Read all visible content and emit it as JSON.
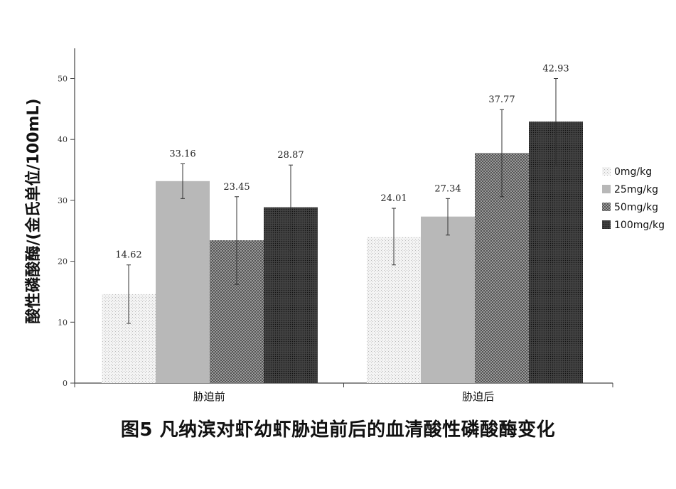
{
  "chart_data": {
    "type": "bar",
    "caption": "图5 凡纳滨对虾幼虾胁迫前后的血清酸性磷酸酶变化",
    "ylabel": "酸性磷酸酶/(金氏单位/100mL)",
    "xlabel": "",
    "ylim": [
      0,
      55
    ],
    "yticks": [
      0,
      10,
      20,
      30,
      40,
      50
    ],
    "categories": [
      "胁迫前",
      "胁迫后"
    ],
    "series": [
      {
        "name": "0mg/kg",
        "values": [
          14.62,
          24.01
        ],
        "err_low": [
          9.8,
          19.4
        ],
        "err_high": [
          19.4,
          28.7
        ],
        "color": "#e6e6e6",
        "pattern": "dots"
      },
      {
        "name": "25mg/kg",
        "values": [
          33.16,
          27.34
        ],
        "err_low": [
          30.3,
          24.3
        ],
        "err_high": [
          36.0,
          30.3
        ],
        "color": "#b8b8b8",
        "pattern": "solid"
      },
      {
        "name": "50mg/kg",
        "values": [
          23.45,
          37.77
        ],
        "err_low": [
          16.2,
          30.6
        ],
        "err_high": [
          30.6,
          44.9
        ],
        "color": "#7a7a7a",
        "pattern": "checker"
      },
      {
        "name": "100mg/kg",
        "values": [
          28.87,
          42.93
        ],
        "err_low": [
          21.8,
          35.8
        ],
        "err_high": [
          35.8,
          50.0
        ],
        "color": "#333333",
        "pattern": "dense"
      }
    ],
    "data_labels": [
      [
        "14.62",
        "24.01"
      ],
      [
        "33.16",
        "27.34"
      ],
      [
        "23.45",
        "37.77"
      ],
      [
        "28.87",
        "42.93"
      ]
    ],
    "grid": false,
    "legend_position": "right"
  }
}
